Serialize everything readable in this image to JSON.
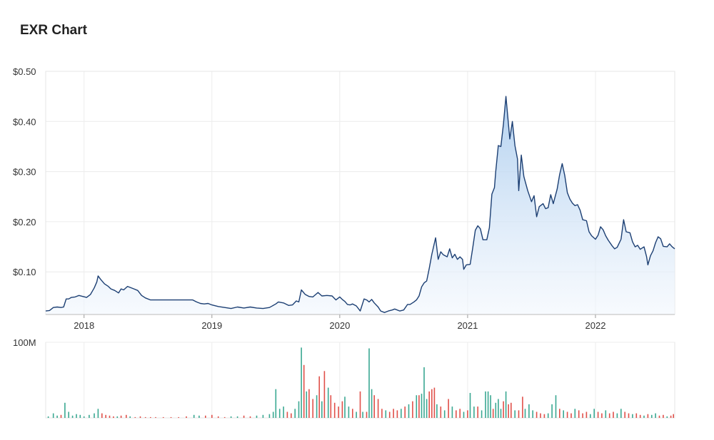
{
  "chart_data": {
    "type": "area",
    "title": "EXR Chart",
    "price_axis": {
      "ylim": [
        0.015,
        0.5
      ],
      "ticks": [
        0.1,
        0.2,
        0.3,
        0.4,
        0.5
      ],
      "tick_labels": [
        "$0.10",
        "$0.20",
        "$0.30",
        "$0.40",
        "$0.50"
      ]
    },
    "x_axis": {
      "xlim": [
        2017.7,
        2022.62
      ],
      "ticks": [
        2018,
        2019,
        2020,
        2021,
        2022
      ],
      "tick_labels": [
        "2018",
        "2019",
        "2020",
        "2021",
        "2022"
      ]
    },
    "volume_axis": {
      "ylim": [
        0,
        100
      ],
      "label": "100M"
    },
    "grid": true,
    "colors": {
      "line": "#1c3f73",
      "area_top": "#a9cbee",
      "area_bottom": "#f2f7fd",
      "volume_up": "#3aa892",
      "volume_down": "#e0504a",
      "grid": "#ececec"
    },
    "price": [
      [
        2017.7,
        0.022
      ],
      [
        2017.73,
        0.023
      ],
      [
        2017.76,
        0.029
      ],
      [
        2017.79,
        0.03
      ],
      [
        2017.82,
        0.029
      ],
      [
        2017.84,
        0.03
      ],
      [
        2017.86,
        0.046
      ],
      [
        2017.88,
        0.046
      ],
      [
        2017.9,
        0.049
      ],
      [
        2017.93,
        0.05
      ],
      [
        2017.96,
        0.053
      ],
      [
        2017.99,
        0.051
      ],
      [
        2018.02,
        0.049
      ],
      [
        2018.05,
        0.055
      ],
      [
        2018.08,
        0.068
      ],
      [
        2018.1,
        0.08
      ],
      [
        2018.11,
        0.092
      ],
      [
        2018.13,
        0.085
      ],
      [
        2018.16,
        0.076
      ],
      [
        2018.19,
        0.071
      ],
      [
        2018.21,
        0.066
      ],
      [
        2018.24,
        0.063
      ],
      [
        2018.27,
        0.058
      ],
      [
        2018.29,
        0.066
      ],
      [
        2018.31,
        0.064
      ],
      [
        2018.34,
        0.071
      ],
      [
        2018.36,
        0.069
      ],
      [
        2018.39,
        0.066
      ],
      [
        2018.42,
        0.063
      ],
      [
        2018.45,
        0.053
      ],
      [
        2018.48,
        0.048
      ],
      [
        2018.52,
        0.044
      ],
      [
        2018.6,
        0.044
      ],
      [
        2018.7,
        0.044
      ],
      [
        2018.8,
        0.044
      ],
      [
        2018.85,
        0.044
      ],
      [
        2018.88,
        0.04
      ],
      [
        2018.91,
        0.037
      ],
      [
        2018.94,
        0.036
      ],
      [
        2018.97,
        0.037
      ],
      [
        2019.0,
        0.034
      ],
      [
        2019.05,
        0.031
      ],
      [
        2019.1,
        0.029
      ],
      [
        2019.15,
        0.027
      ],
      [
        2019.2,
        0.03
      ],
      [
        2019.25,
        0.028
      ],
      [
        2019.3,
        0.03
      ],
      [
        2019.35,
        0.028
      ],
      [
        2019.4,
        0.027
      ],
      [
        2019.45,
        0.029
      ],
      [
        2019.5,
        0.036
      ],
      [
        2019.52,
        0.04
      ],
      [
        2019.56,
        0.038
      ],
      [
        2019.6,
        0.033
      ],
      [
        2019.63,
        0.034
      ],
      [
        2019.66,
        0.042
      ],
      [
        2019.68,
        0.04
      ],
      [
        2019.7,
        0.064
      ],
      [
        2019.73,
        0.055
      ],
      [
        2019.76,
        0.051
      ],
      [
        2019.79,
        0.05
      ],
      [
        2019.83,
        0.059
      ],
      [
        2019.86,
        0.052
      ],
      [
        2019.9,
        0.053
      ],
      [
        2019.94,
        0.052
      ],
      [
        2019.97,
        0.044
      ],
      [
        2020.0,
        0.05
      ],
      [
        2020.02,
        0.045
      ],
      [
        2020.04,
        0.041
      ],
      [
        2020.06,
        0.035
      ],
      [
        2020.08,
        0.034
      ],
      [
        2020.1,
        0.036
      ],
      [
        2020.13,
        0.032
      ],
      [
        2020.16,
        0.022
      ],
      [
        2020.19,
        0.046
      ],
      [
        2020.21,
        0.044
      ],
      [
        2020.23,
        0.04
      ],
      [
        2020.25,
        0.045
      ],
      [
        2020.27,
        0.038
      ],
      [
        2020.3,
        0.03
      ],
      [
        2020.32,
        0.022
      ],
      [
        2020.35,
        0.019
      ],
      [
        2020.38,
        0.022
      ],
      [
        2020.41,
        0.024
      ],
      [
        2020.43,
        0.026
      ],
      [
        2020.47,
        0.022
      ],
      [
        2020.5,
        0.024
      ],
      [
        2020.53,
        0.035
      ],
      [
        2020.55,
        0.035
      ],
      [
        2020.58,
        0.04
      ],
      [
        2020.6,
        0.044
      ],
      [
        2020.62,
        0.052
      ],
      [
        2020.64,
        0.07
      ],
      [
        2020.66,
        0.078
      ],
      [
        2020.68,
        0.082
      ],
      [
        2020.7,
        0.107
      ],
      [
        2020.72,
        0.135
      ],
      [
        2020.75,
        0.168
      ],
      [
        2020.77,
        0.125
      ],
      [
        2020.79,
        0.14
      ],
      [
        2020.81,
        0.134
      ],
      [
        2020.84,
        0.13
      ],
      [
        2020.86,
        0.146
      ],
      [
        2020.88,
        0.128
      ],
      [
        2020.9,
        0.135
      ],
      [
        2020.92,
        0.125
      ],
      [
        2020.94,
        0.13
      ],
      [
        2020.96,
        0.125
      ],
      [
        2020.97,
        0.105
      ],
      [
        2020.99,
        0.114
      ],
      [
        2021.02,
        0.115
      ],
      [
        2021.04,
        0.148
      ],
      [
        2021.06,
        0.183
      ],
      [
        2021.08,
        0.192
      ],
      [
        2021.1,
        0.186
      ],
      [
        2021.12,
        0.164
      ],
      [
        2021.15,
        0.164
      ],
      [
        2021.17,
        0.188
      ],
      [
        2021.19,
        0.255
      ],
      [
        2021.21,
        0.268
      ],
      [
        2021.22,
        0.3
      ],
      [
        2021.24,
        0.352
      ],
      [
        2021.26,
        0.35
      ],
      [
        2021.28,
        0.395
      ],
      [
        2021.3,
        0.45
      ],
      [
        2021.33,
        0.365
      ],
      [
        2021.35,
        0.4
      ],
      [
        2021.37,
        0.352
      ],
      [
        2021.39,
        0.325
      ],
      [
        2021.4,
        0.262
      ],
      [
        2021.42,
        0.333
      ],
      [
        2021.44,
        0.29
      ],
      [
        2021.47,
        0.262
      ],
      [
        2021.5,
        0.24
      ],
      [
        2021.52,
        0.252
      ],
      [
        2021.54,
        0.21
      ],
      [
        2021.56,
        0.23
      ],
      [
        2021.59,
        0.236
      ],
      [
        2021.61,
        0.226
      ],
      [
        2021.63,
        0.228
      ],
      [
        2021.65,
        0.254
      ],
      [
        2021.67,
        0.236
      ],
      [
        2021.7,
        0.265
      ],
      [
        2021.72,
        0.294
      ],
      [
        2021.74,
        0.316
      ],
      [
        2021.76,
        0.292
      ],
      [
        2021.78,
        0.258
      ],
      [
        2021.8,
        0.245
      ],
      [
        2021.82,
        0.237
      ],
      [
        2021.84,
        0.232
      ],
      [
        2021.86,
        0.234
      ],
      [
        2021.88,
        0.223
      ],
      [
        2021.9,
        0.204
      ],
      [
        2021.93,
        0.202
      ],
      [
        2021.95,
        0.18
      ],
      [
        2021.97,
        0.172
      ],
      [
        2022.0,
        0.165
      ],
      [
        2022.02,
        0.173
      ],
      [
        2022.04,
        0.19
      ],
      [
        2022.06,
        0.184
      ],
      [
        2022.08,
        0.172
      ],
      [
        2022.1,
        0.163
      ],
      [
        2022.13,
        0.152
      ],
      [
        2022.15,
        0.146
      ],
      [
        2022.17,
        0.149
      ],
      [
        2022.2,
        0.165
      ],
      [
        2022.22,
        0.204
      ],
      [
        2022.24,
        0.18
      ],
      [
        2022.27,
        0.178
      ],
      [
        2022.29,
        0.16
      ],
      [
        2022.31,
        0.15
      ],
      [
        2022.33,
        0.153
      ],
      [
        2022.35,
        0.145
      ],
      [
        2022.38,
        0.15
      ],
      [
        2022.4,
        0.13
      ],
      [
        2022.41,
        0.114
      ],
      [
        2022.43,
        0.132
      ],
      [
        2022.45,
        0.142
      ],
      [
        2022.47,
        0.158
      ],
      [
        2022.49,
        0.17
      ],
      [
        2022.51,
        0.166
      ],
      [
        2022.53,
        0.151
      ],
      [
        2022.56,
        0.15
      ],
      [
        2022.58,
        0.156
      ],
      [
        2022.6,
        0.15
      ],
      [
        2022.62,
        0.146
      ]
    ],
    "volume": [
      [
        2017.72,
        2,
        "up"
      ],
      [
        2017.76,
        6,
        "up"
      ],
      [
        2017.79,
        3,
        "up"
      ],
      [
        2017.82,
        4,
        "down"
      ],
      [
        2017.85,
        20,
        "up"
      ],
      [
        2017.88,
        8,
        "up"
      ],
      [
        2017.91,
        3,
        "up"
      ],
      [
        2017.94,
        5,
        "up"
      ],
      [
        2017.97,
        4,
        "up"
      ],
      [
        2018.0,
        2,
        "up"
      ],
      [
        2018.04,
        4,
        "up"
      ],
      [
        2018.08,
        6,
        "up"
      ],
      [
        2018.11,
        12,
        "up"
      ],
      [
        2018.14,
        6,
        "down"
      ],
      [
        2018.17,
        4,
        "down"
      ],
      [
        2018.2,
        3,
        "down"
      ],
      [
        2018.23,
        2,
        "down"
      ],
      [
        2018.26,
        2,
        "up"
      ],
      [
        2018.29,
        3,
        "down"
      ],
      [
        2018.33,
        4,
        "down"
      ],
      [
        2018.36,
        2,
        "up"
      ],
      [
        2018.4,
        1,
        "down"
      ],
      [
        2018.44,
        2,
        "down"
      ],
      [
        2018.48,
        1,
        "down"
      ],
      [
        2018.52,
        1,
        "down"
      ],
      [
        2018.56,
        1,
        "down"
      ],
      [
        2018.62,
        1,
        "down"
      ],
      [
        2018.68,
        1,
        "down"
      ],
      [
        2018.74,
        1,
        "down"
      ],
      [
        2018.8,
        2,
        "down"
      ],
      [
        2018.86,
        4,
        "up"
      ],
      [
        2018.9,
        3,
        "up"
      ],
      [
        2018.95,
        3,
        "down"
      ],
      [
        2019.0,
        4,
        "down"
      ],
      [
        2019.05,
        2,
        "down"
      ],
      [
        2019.1,
        1,
        "down"
      ],
      [
        2019.15,
        2,
        "up"
      ],
      [
        2019.2,
        2,
        "up"
      ],
      [
        2019.25,
        3,
        "down"
      ],
      [
        2019.3,
        2,
        "down"
      ],
      [
        2019.35,
        3,
        "up"
      ],
      [
        2019.4,
        4,
        "up"
      ],
      [
        2019.45,
        5,
        "up"
      ],
      [
        2019.48,
        8,
        "up"
      ],
      [
        2019.5,
        38,
        "up"
      ],
      [
        2019.53,
        12,
        "up"
      ],
      [
        2019.56,
        15,
        "up"
      ],
      [
        2019.59,
        8,
        "down"
      ],
      [
        2019.62,
        6,
        "down"
      ],
      [
        2019.65,
        12,
        "up"
      ],
      [
        2019.68,
        22,
        "up"
      ],
      [
        2019.7,
        93,
        "up"
      ],
      [
        2019.72,
        70,
        "down"
      ],
      [
        2019.74,
        35,
        "up"
      ],
      [
        2019.76,
        38,
        "down"
      ],
      [
        2019.79,
        25,
        "down"
      ],
      [
        2019.82,
        30,
        "up"
      ],
      [
        2019.84,
        55,
        "down"
      ],
      [
        2019.86,
        22,
        "up"
      ],
      [
        2019.88,
        62,
        "down"
      ],
      [
        2019.91,
        40,
        "up"
      ],
      [
        2019.93,
        30,
        "down"
      ],
      [
        2019.96,
        20,
        "down"
      ],
      [
        2019.99,
        15,
        "down"
      ],
      [
        2020.02,
        22,
        "down"
      ],
      [
        2020.04,
        28,
        "up"
      ],
      [
        2020.07,
        15,
        "up"
      ],
      [
        2020.1,
        12,
        "down"
      ],
      [
        2020.13,
        8,
        "up"
      ],
      [
        2020.16,
        35,
        "down"
      ],
      [
        2020.18,
        8,
        "up"
      ],
      [
        2020.21,
        8,
        "down"
      ],
      [
        2020.23,
        92,
        "up"
      ],
      [
        2020.25,
        38,
        "up"
      ],
      [
        2020.27,
        30,
        "down"
      ],
      [
        2020.3,
        25,
        "down"
      ],
      [
        2020.33,
        12,
        "down"
      ],
      [
        2020.36,
        10,
        "up"
      ],
      [
        2020.39,
        8,
        "down"
      ],
      [
        2020.42,
        12,
        "down"
      ],
      [
        2020.45,
        10,
        "down"
      ],
      [
        2020.48,
        12,
        "up"
      ],
      [
        2020.51,
        15,
        "down"
      ],
      [
        2020.54,
        18,
        "up"
      ],
      [
        2020.57,
        22,
        "down"
      ],
      [
        2020.6,
        30,
        "up"
      ],
      [
        2020.62,
        30,
        "down"
      ],
      [
        2020.64,
        32,
        "up"
      ],
      [
        2020.66,
        67,
        "up"
      ],
      [
        2020.68,
        25,
        "up"
      ],
      [
        2020.7,
        35,
        "down"
      ],
      [
        2020.72,
        38,
        "down"
      ],
      [
        2020.74,
        40,
        "down"
      ],
      [
        2020.76,
        18,
        "up"
      ],
      [
        2020.79,
        15,
        "down"
      ],
      [
        2020.82,
        10,
        "up"
      ],
      [
        2020.85,
        25,
        "down"
      ],
      [
        2020.88,
        15,
        "up"
      ],
      [
        2020.91,
        10,
        "down"
      ],
      [
        2020.94,
        12,
        "down"
      ],
      [
        2020.97,
        8,
        "up"
      ],
      [
        2021.0,
        10,
        "down"
      ],
      [
        2021.02,
        33,
        "up"
      ],
      [
        2021.05,
        15,
        "up"
      ],
      [
        2021.08,
        15,
        "down"
      ],
      [
        2021.11,
        10,
        "up"
      ],
      [
        2021.14,
        35,
        "up"
      ],
      [
        2021.16,
        35,
        "up"
      ],
      [
        2021.18,
        30,
        "up"
      ],
      [
        2021.2,
        12,
        "down"
      ],
      [
        2021.22,
        20,
        "up"
      ],
      [
        2021.24,
        25,
        "up"
      ],
      [
        2021.26,
        12,
        "up"
      ],
      [
        2021.28,
        22,
        "down"
      ],
      [
        2021.3,
        35,
        "up"
      ],
      [
        2021.32,
        18,
        "down"
      ],
      [
        2021.34,
        20,
        "down"
      ],
      [
        2021.37,
        10,
        "up"
      ],
      [
        2021.4,
        10,
        "down"
      ],
      [
        2021.43,
        28,
        "down"
      ],
      [
        2021.45,
        12,
        "up"
      ],
      [
        2021.48,
        18,
        "up"
      ],
      [
        2021.51,
        10,
        "up"
      ],
      [
        2021.54,
        8,
        "down"
      ],
      [
        2021.57,
        6,
        "down"
      ],
      [
        2021.6,
        5,
        "down"
      ],
      [
        2021.63,
        6,
        "up"
      ],
      [
        2021.66,
        18,
        "up"
      ],
      [
        2021.69,
        30,
        "up"
      ],
      [
        2021.72,
        12,
        "down"
      ],
      [
        2021.75,
        10,
        "up"
      ],
      [
        2021.78,
        8,
        "down"
      ],
      [
        2021.81,
        6,
        "down"
      ],
      [
        2021.84,
        12,
        "up"
      ],
      [
        2021.87,
        10,
        "down"
      ],
      [
        2021.9,
        6,
        "down"
      ],
      [
        2021.93,
        8,
        "down"
      ],
      [
        2021.96,
        5,
        "up"
      ],
      [
        2021.99,
        12,
        "up"
      ],
      [
        2022.02,
        8,
        "down"
      ],
      [
        2022.05,
        6,
        "down"
      ],
      [
        2022.08,
        10,
        "up"
      ],
      [
        2022.11,
        6,
        "down"
      ],
      [
        2022.14,
        8,
        "down"
      ],
      [
        2022.17,
        6,
        "up"
      ],
      [
        2022.2,
        12,
        "up"
      ],
      [
        2022.23,
        8,
        "down"
      ],
      [
        2022.26,
        6,
        "down"
      ],
      [
        2022.29,
        5,
        "up"
      ],
      [
        2022.32,
        6,
        "down"
      ],
      [
        2022.35,
        4,
        "down"
      ],
      [
        2022.38,
        3,
        "up"
      ],
      [
        2022.41,
        5,
        "down"
      ],
      [
        2022.44,
        4,
        "up"
      ],
      [
        2022.47,
        6,
        "up"
      ],
      [
        2022.5,
        3,
        "down"
      ],
      [
        2022.53,
        4,
        "down"
      ],
      [
        2022.56,
        2,
        "up"
      ],
      [
        2022.59,
        3,
        "down"
      ],
      [
        2022.61,
        5,
        "down"
      ]
    ]
  }
}
